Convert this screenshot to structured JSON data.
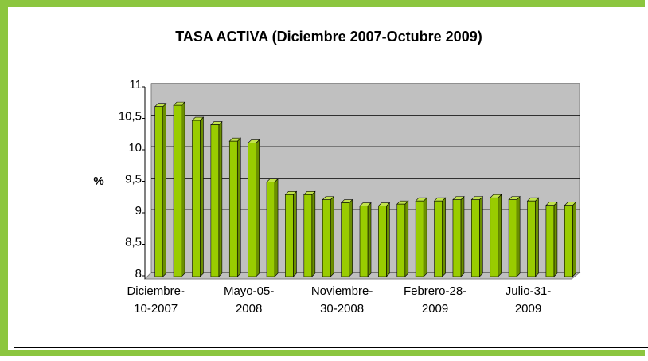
{
  "chart_data": {
    "type": "bar3d",
    "title": "TASA ACTIVA (Diciembre 2007-Octubre 2009)",
    "y_label": "%",
    "categories": [
      "Diciembre-10-2007",
      null,
      null,
      null,
      null,
      "Mayo-05-2008",
      null,
      null,
      null,
      null,
      "Noviembre-30-2008",
      null,
      null,
      null,
      null,
      "Febrero-28-2009",
      null,
      null,
      null,
      null,
      "Julio-31-2009",
      null,
      null
    ],
    "values": [
      10.7,
      10.72,
      10.48,
      10.41,
      10.15,
      10.12,
      9.5,
      9.3,
      9.3,
      9.22,
      9.17,
      9.12,
      9.12,
      9.15,
      9.2,
      9.2,
      9.22,
      9.22,
      9.25,
      9.22,
      9.2,
      9.13,
      9.13
    ],
    "color": "#99cc00",
    "ylim": [
      8,
      11
    ],
    "yticks": [
      8,
      {
        "value": 8.5,
        "label": "8,5"
      },
      9,
      {
        "value": 9.5,
        "label": "9,5"
      },
      10,
      {
        "value": 10.5,
        "label": "10,5"
      },
      11
    ],
    "grid": true
  }
}
